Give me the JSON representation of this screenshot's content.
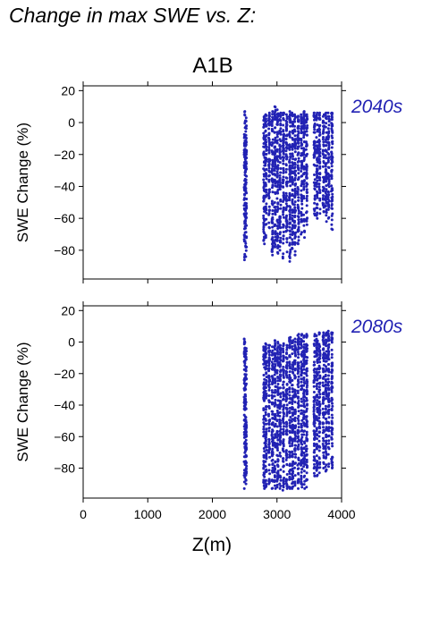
{
  "page_title": "Change in max SWE vs. Z:",
  "scenario_label": "A1B",
  "colors": {
    "points": "#2222b4",
    "period_label": "#2222b4",
    "axis": "#000000"
  },
  "chart_data": [
    {
      "type": "scatter",
      "panel_label": "2040s",
      "ylabel": "SWE Change (%)",
      "xlabel": "",
      "xlim": [
        0,
        4000
      ],
      "ylim": [
        -98,
        23
      ],
      "yticks": [
        20,
        0,
        -20,
        -40,
        -60,
        -80
      ],
      "xticks": [
        0,
        1000,
        2000,
        3000,
        4000
      ],
      "show_x_tick_labels": false,
      "grid": false,
      "columns": [
        {
          "x": 2500,
          "ymin": -86,
          "ymax": 7
        },
        {
          "x": 2520,
          "ymin": -84,
          "ymax": 3
        },
        {
          "x": 2800,
          "ymin": -76,
          "ymax": 4
        },
        {
          "x": 2830,
          "ymin": -72,
          "ymax": 5
        },
        {
          "x": 2880,
          "ymin": -66,
          "ymax": 6
        },
        {
          "x": 2930,
          "ymin": -83,
          "ymax": 7
        },
        {
          "x": 2970,
          "ymin": -78,
          "ymax": 10
        },
        {
          "x": 3010,
          "ymin": -82,
          "ymax": 8
        },
        {
          "x": 3050,
          "ymin": -80,
          "ymax": 6
        },
        {
          "x": 3100,
          "ymin": -85,
          "ymax": 6
        },
        {
          "x": 3150,
          "ymin": -81,
          "ymax": 5
        },
        {
          "x": 3200,
          "ymin": -87,
          "ymax": 7
        },
        {
          "x": 3240,
          "ymin": -79,
          "ymax": 6
        },
        {
          "x": 3280,
          "ymin": -83,
          "ymax": 5
        },
        {
          "x": 3330,
          "ymin": -76,
          "ymax": 4
        },
        {
          "x": 3380,
          "ymin": -70,
          "ymax": 5
        },
        {
          "x": 3420,
          "ymin": -72,
          "ymax": 7
        },
        {
          "x": 3460,
          "ymin": -64,
          "ymax": 5
        },
        {
          "x": 3580,
          "ymin": -58,
          "ymax": 6
        },
        {
          "x": 3620,
          "ymin": -60,
          "ymax": 6
        },
        {
          "x": 3660,
          "ymin": -57,
          "ymax": 6
        },
        {
          "x": 3720,
          "ymin": -56,
          "ymax": 5
        },
        {
          "x": 3760,
          "ymin": -62,
          "ymax": 6
        },
        {
          "x": 3800,
          "ymin": -60,
          "ymax": 6
        },
        {
          "x": 3850,
          "ymin": -67,
          "ymax": 6
        }
      ]
    },
    {
      "type": "scatter",
      "panel_label": "2080s",
      "ylabel": "SWE Change (%)",
      "xlabel": "Z(m)",
      "xlim": [
        0,
        4000
      ],
      "ylim": [
        -99,
        23
      ],
      "yticks": [
        20,
        0,
        -20,
        -40,
        -60,
        -80
      ],
      "xticks": [
        0,
        1000,
        2000,
        3000,
        4000
      ],
      "show_x_tick_labels": true,
      "grid": false,
      "columns": [
        {
          "x": 2500,
          "ymin": -93,
          "ymax": 2
        },
        {
          "x": 2520,
          "ymin": -90,
          "ymax": -4
        },
        {
          "x": 2800,
          "ymin": -93,
          "ymax": -3
        },
        {
          "x": 2830,
          "ymin": -92,
          "ymax": -1
        },
        {
          "x": 2880,
          "ymin": -90,
          "ymax": -2
        },
        {
          "x": 2930,
          "ymin": -93,
          "ymax": -3
        },
        {
          "x": 2970,
          "ymin": -93,
          "ymax": 1
        },
        {
          "x": 3010,
          "ymin": -92,
          "ymax": 0
        },
        {
          "x": 3050,
          "ymin": -93,
          "ymax": -2
        },
        {
          "x": 3100,
          "ymin": -94,
          "ymax": -1
        },
        {
          "x": 3150,
          "ymin": -93,
          "ymax": -2
        },
        {
          "x": 3200,
          "ymin": -93,
          "ymax": 3
        },
        {
          "x": 3240,
          "ymin": -93,
          "ymax": 1
        },
        {
          "x": 3280,
          "ymin": -91,
          "ymax": 2
        },
        {
          "x": 3330,
          "ymin": -93,
          "ymax": 5
        },
        {
          "x": 3380,
          "ymin": -92,
          "ymax": 5
        },
        {
          "x": 3420,
          "ymin": -93,
          "ymax": 4
        },
        {
          "x": 3460,
          "ymin": -92,
          "ymax": 5
        },
        {
          "x": 3580,
          "ymin": -85,
          "ymax": 5
        },
        {
          "x": 3620,
          "ymin": -85,
          "ymax": 4
        },
        {
          "x": 3660,
          "ymin": -83,
          "ymax": 6
        },
        {
          "x": 3720,
          "ymin": -80,
          "ymax": 6
        },
        {
          "x": 3760,
          "ymin": -82,
          "ymax": 6
        },
        {
          "x": 3800,
          "ymin": -79,
          "ymax": 7
        },
        {
          "x": 3850,
          "ymin": -80,
          "ymax": 6
        }
      ]
    }
  ]
}
